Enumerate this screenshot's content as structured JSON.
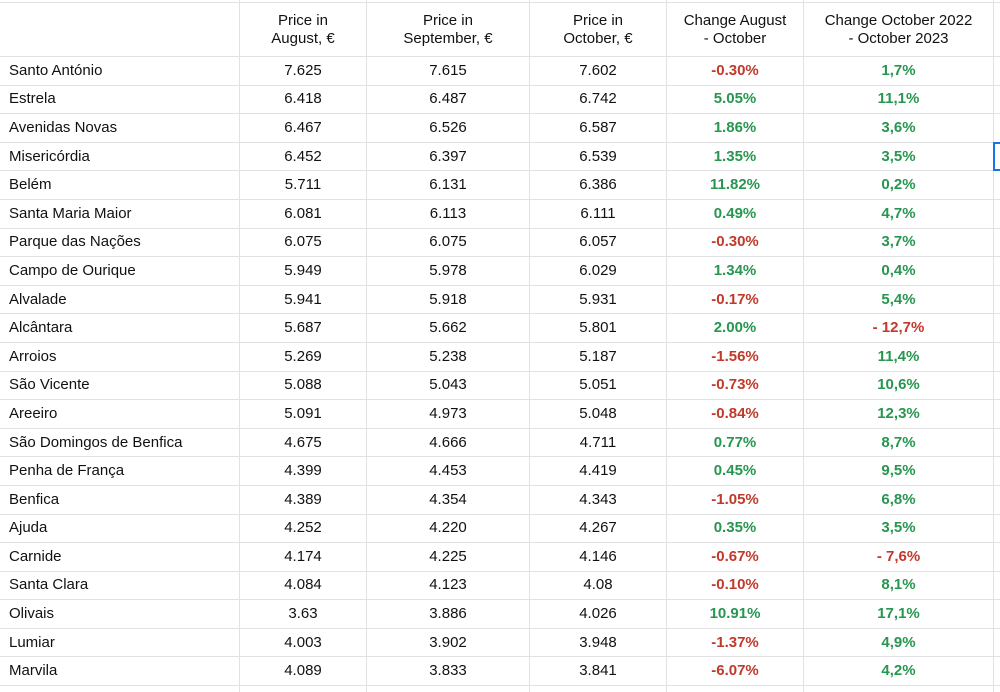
{
  "colors": {
    "positive": "#27964f",
    "negative": "#c0392b",
    "selection_border": "#1a73e8",
    "gridline": "#e2e2e2",
    "text": "#111111"
  },
  "table": {
    "columns": [
      "Price in\nAugust, €",
      "Price in\nSeptember, €",
      "Price in\nOctober, €",
      "Change August\n- October",
      "Change October 2022\n- October 2023"
    ],
    "rows": [
      {
        "name": "Santo António",
        "price_aug": "7.625",
        "price_sep": "7.615",
        "price_oct": "7.602",
        "change_aug_oct": "-0.30%",
        "change_oct22_oct23": "1,7%"
      },
      {
        "name": "Estrela",
        "price_aug": "6.418",
        "price_sep": "6.487",
        "price_oct": "6.742",
        "change_aug_oct": "5.05%",
        "change_oct22_oct23": "11,1%"
      },
      {
        "name": "Avenidas Novas",
        "price_aug": "6.467",
        "price_sep": "6.526",
        "price_oct": "6.587",
        "change_aug_oct": "1.86%",
        "change_oct22_oct23": "3,6%"
      },
      {
        "name": "Misericórdia",
        "price_aug": "6.452",
        "price_sep": "6.397",
        "price_oct": "6.539",
        "change_aug_oct": "1.35%",
        "change_oct22_oct23": "3,5%"
      },
      {
        "name": "Belém",
        "price_aug": "5.711",
        "price_sep": "6.131",
        "price_oct": "6.386",
        "change_aug_oct": "11.82%",
        "change_oct22_oct23": "0,2%"
      },
      {
        "name": "Santa Maria Maior",
        "price_aug": "6.081",
        "price_sep": "6.113",
        "price_oct": "6.111",
        "change_aug_oct": "0.49%",
        "change_oct22_oct23": "4,7%"
      },
      {
        "name": "Parque das Nações",
        "price_aug": "6.075",
        "price_sep": "6.075",
        "price_oct": "6.057",
        "change_aug_oct": "-0.30%",
        "change_oct22_oct23": "3,7%"
      },
      {
        "name": "Campo de Ourique",
        "price_aug": "5.949",
        "price_sep": "5.978",
        "price_oct": "6.029",
        "change_aug_oct": "1.34%",
        "change_oct22_oct23": "0,4%"
      },
      {
        "name": "Alvalade",
        "price_aug": "5.941",
        "price_sep": "5.918",
        "price_oct": "5.931",
        "change_aug_oct": "-0.17%",
        "change_oct22_oct23": "5,4%"
      },
      {
        "name": "Alcântara",
        "price_aug": "5.687",
        "price_sep": "5.662",
        "price_oct": "5.801",
        "change_aug_oct": "2.00%",
        "change_oct22_oct23": "- 12,7%"
      },
      {
        "name": "Arroios",
        "price_aug": "5.269",
        "price_sep": "5.238",
        "price_oct": "5.187",
        "change_aug_oct": "-1.56%",
        "change_oct22_oct23": "11,4%"
      },
      {
        "name": "São Vicente",
        "price_aug": "5.088",
        "price_sep": "5.043",
        "price_oct": "5.051",
        "change_aug_oct": "-0.73%",
        "change_oct22_oct23": "10,6%"
      },
      {
        "name": "Areeiro",
        "price_aug": "5.091",
        "price_sep": "4.973",
        "price_oct": "5.048",
        "change_aug_oct": "-0.84%",
        "change_oct22_oct23": "12,3%"
      },
      {
        "name": "São Domingos de Benfica",
        "price_aug": "4.675",
        "price_sep": "4.666",
        "price_oct": "4.711",
        "change_aug_oct": "0.77%",
        "change_oct22_oct23": "8,7%"
      },
      {
        "name": "Penha de França",
        "price_aug": "4.399",
        "price_sep": "4.453",
        "price_oct": "4.419",
        "change_aug_oct": "0.45%",
        "change_oct22_oct23": "9,5%"
      },
      {
        "name": "Benfica",
        "price_aug": "4.389",
        "price_sep": "4.354",
        "price_oct": "4.343",
        "change_aug_oct": "-1.05%",
        "change_oct22_oct23": "6,8%"
      },
      {
        "name": "Ajuda",
        "price_aug": "4.252",
        "price_sep": "4.220",
        "price_oct": "4.267",
        "change_aug_oct": "0.35%",
        "change_oct22_oct23": "3,5%"
      },
      {
        "name": "Carnide",
        "price_aug": "4.174",
        "price_sep": "4.225",
        "price_oct": "4.146",
        "change_aug_oct": "-0.67%",
        "change_oct22_oct23": "- 7,6%"
      },
      {
        "name": "Santa Clara",
        "price_aug": "4.084",
        "price_sep": "4.123",
        "price_oct": "4.08",
        "change_aug_oct": "-0.10%",
        "change_oct22_oct23": "8,1%"
      },
      {
        "name": "Olivais",
        "price_aug": "3.63",
        "price_sep": "3.886",
        "price_oct": "4.026",
        "change_aug_oct": "10.91%",
        "change_oct22_oct23": "17,1%"
      },
      {
        "name": "Lumiar",
        "price_aug": "4.003",
        "price_sep": "3.902",
        "price_oct": "3.948",
        "change_aug_oct": "-1.37%",
        "change_oct22_oct23": "4,9%"
      },
      {
        "name": "Marvila",
        "price_aug": "4.089",
        "price_sep": "3.833",
        "price_oct": "3.841",
        "change_aug_oct": "-6.07%",
        "change_oct22_oct23": "4,2%"
      }
    ]
  }
}
